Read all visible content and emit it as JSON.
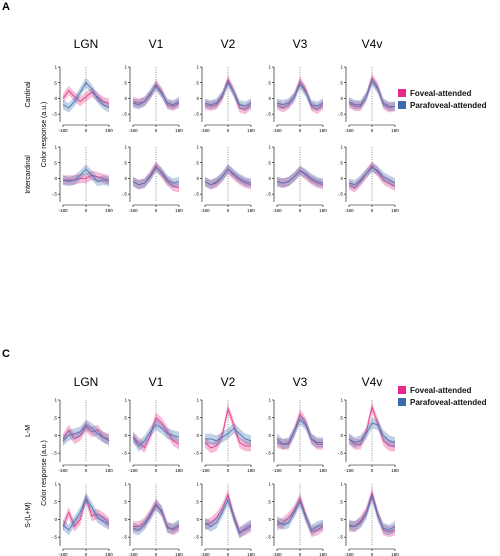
{
  "figure": {
    "colors": {
      "foveal": "#e83e8c",
      "parafoveal": "#4a77b4"
    },
    "legend": [
      {
        "label": "Foveal-attended",
        "color": "#e8298c"
      },
      {
        "label": "Parafoveal-attended",
        "color": "#3d69ad"
      }
    ],
    "x_ticks": [
      "-180",
      "0",
      "180"
    ],
    "y_ticks": [
      "1",
      ".5",
      "0",
      "-.5"
    ],
    "y_label": "Color response (a.u.)"
  },
  "chart_data": [
    {
      "panel": "A",
      "type": "line",
      "columns": [
        "LGN",
        "V1",
        "V2",
        "V3",
        "V4v"
      ],
      "rows": [
        "Cardinal",
        "Intercardinal"
      ],
      "x": [
        -180,
        -135,
        -90,
        -45,
        0,
        45,
        90,
        135,
        180
      ],
      "xlim": [
        -180,
        180
      ],
      "ylim": [
        -0.75,
        1.0
      ],
      "series": [
        {
          "name": "Foveal-attended",
          "cells": [
            [
              [
                0.0,
                0.25,
                0.05,
                -0.1,
                0.05,
                0.2,
                0.05,
                -0.1,
                -0.15
              ],
              [
                -0.1,
                -0.15,
                -0.1,
                0.1,
                0.45,
                0.2,
                -0.2,
                -0.25,
                -0.15
              ],
              [
                -0.2,
                -0.25,
                -0.2,
                0.05,
                0.6,
                0.2,
                -0.3,
                -0.35,
                -0.2
              ],
              [
                -0.2,
                -0.3,
                -0.2,
                0.05,
                0.55,
                0.25,
                -0.25,
                -0.35,
                -0.2
              ],
              [
                -0.15,
                -0.25,
                -0.25,
                0.05,
                0.65,
                0.35,
                -0.2,
                -0.3,
                -0.25
              ]
            ],
            [
              [
                -0.05,
                -0.05,
                -0.05,
                0.0,
                0.0,
                0.1,
                0.05,
                0.0,
                -0.05
              ],
              [
                -0.1,
                -0.2,
                -0.15,
                0.1,
                0.4,
                0.15,
                -0.1,
                -0.25,
                -0.3
              ],
              [
                -0.1,
                -0.2,
                -0.15,
                0.05,
                0.3,
                0.1,
                -0.05,
                -0.15,
                -0.2
              ],
              [
                -0.1,
                -0.15,
                -0.1,
                0.05,
                0.25,
                0.1,
                -0.05,
                -0.15,
                -0.2
              ],
              [
                -0.2,
                -0.3,
                -0.1,
                0.15,
                0.4,
                0.2,
                -0.05,
                -0.15,
                -0.25
              ]
            ]
          ]
        },
        {
          "name": "Parafoveal-attended",
          "cells": [
            [
              [
                -0.2,
                -0.3,
                -0.1,
                0.2,
                0.5,
                0.3,
                0.0,
                -0.2,
                -0.3
              ],
              [
                -0.15,
                -0.2,
                -0.1,
                0.15,
                0.4,
                0.15,
                -0.15,
                -0.2,
                -0.1
              ],
              [
                -0.15,
                -0.2,
                -0.15,
                0.1,
                0.5,
                0.2,
                -0.2,
                -0.25,
                -0.15
              ],
              [
                -0.15,
                -0.2,
                -0.15,
                0.05,
                0.45,
                0.2,
                -0.2,
                -0.25,
                -0.15
              ],
              [
                -0.1,
                -0.2,
                -0.2,
                0.05,
                0.55,
                0.3,
                -0.15,
                -0.25,
                -0.25
              ]
            ],
            [
              [
                -0.05,
                -0.1,
                -0.05,
                0.1,
                0.3,
                0.1,
                -0.1,
                -0.05,
                -0.1
              ],
              [
                -0.1,
                -0.2,
                -0.15,
                0.05,
                0.35,
                0.2,
                -0.05,
                -0.15,
                -0.1
              ],
              [
                -0.1,
                -0.2,
                -0.1,
                0.05,
                0.3,
                0.15,
                0.0,
                -0.1,
                -0.15
              ],
              [
                -0.1,
                -0.15,
                -0.1,
                0.05,
                0.25,
                0.15,
                0.0,
                -0.1,
                -0.15
              ],
              [
                -0.15,
                -0.2,
                -0.05,
                0.15,
                0.35,
                0.25,
                0.05,
                -0.05,
                -0.15
              ]
            ]
          ]
        }
      ]
    },
    {
      "panel": "C",
      "type": "line",
      "columns": [
        "LGN",
        "V1",
        "V2",
        "V3",
        "V4v"
      ],
      "rows": [
        "L-M",
        "S-(L+M)"
      ],
      "x": [
        -180,
        -135,
        -90,
        -45,
        0,
        45,
        90,
        135,
        180
      ],
      "xlim": [
        -180,
        180
      ],
      "ylim": [
        -0.75,
        1.0
      ],
      "series": [
        {
          "name": "Foveal-attended",
          "cells": [
            [
              [
                -0.1,
                0.15,
                -0.1,
                0.0,
                0.25,
                0.1,
                0.15,
                -0.05,
                -0.1
              ],
              [
                -0.05,
                -0.2,
                -0.35,
                0.0,
                0.5,
                0.35,
                0.1,
                -0.15,
                -0.25
              ],
              [
                -0.2,
                -0.35,
                -0.3,
                0.0,
                0.75,
                0.3,
                -0.2,
                -0.3,
                -0.3
              ],
              [
                -0.2,
                -0.25,
                -0.25,
                0.1,
                0.6,
                0.35,
                -0.1,
                -0.25,
                -0.25
              ],
              [
                -0.1,
                -0.25,
                -0.25,
                0.1,
                0.8,
                0.35,
                -0.15,
                -0.3,
                -0.3
              ]
            ],
            [
              [
                -0.2,
                0.2,
                -0.2,
                0.0,
                0.6,
                0.1,
                0.15,
                0.05,
                -0.1
              ],
              [
                -0.2,
                -0.2,
                -0.1,
                0.15,
                0.45,
                0.2,
                -0.2,
                -0.3,
                -0.2
              ],
              [
                -0.15,
                -0.1,
                0.05,
                0.3,
                0.7,
                0.1,
                -0.35,
                -0.3,
                -0.2
              ],
              [
                -0.15,
                -0.1,
                0.05,
                0.25,
                0.6,
                0.1,
                -0.35,
                -0.3,
                -0.2
              ],
              [
                -0.2,
                -0.2,
                -0.05,
                0.2,
                0.75,
                0.15,
                -0.3,
                -0.35,
                -0.3
              ]
            ]
          ]
        },
        {
          "name": "Parafoveal-attended",
          "cells": [
            [
              [
                -0.15,
                0.0,
                0.05,
                0.1,
                0.3,
                0.2,
                0.05,
                -0.05,
                -0.15
              ],
              [
                -0.05,
                -0.3,
                -0.15,
                0.1,
                0.3,
                0.2,
                0.05,
                0.0,
                -0.05
              ],
              [
                -0.1,
                -0.1,
                -0.15,
                -0.05,
                0.05,
                0.2,
                0.05,
                -0.1,
                -0.15
              ],
              [
                -0.1,
                -0.25,
                -0.2,
                0.1,
                0.45,
                0.3,
                -0.1,
                -0.2,
                -0.2
              ],
              [
                -0.1,
                -0.2,
                -0.15,
                0.05,
                0.35,
                0.3,
                0.0,
                -0.15,
                -0.2
              ]
            ],
            [
              [
                -0.15,
                -0.3,
                -0.05,
                0.2,
                0.6,
                0.35,
                0.05,
                -0.05,
                -0.15
              ],
              [
                -0.25,
                -0.3,
                -0.15,
                0.1,
                0.4,
                0.25,
                -0.25,
                -0.25,
                -0.15
              ],
              [
                -0.1,
                -0.2,
                -0.1,
                0.2,
                0.55,
                0.05,
                -0.4,
                -0.25,
                -0.15
              ],
              [
                -0.05,
                -0.15,
                -0.1,
                0.2,
                0.5,
                0.05,
                -0.3,
                -0.2,
                -0.15
              ],
              [
                -0.15,
                -0.2,
                -0.1,
                0.15,
                0.65,
                0.1,
                -0.25,
                -0.3,
                -0.2
              ]
            ]
          ]
        }
      ]
    }
  ]
}
